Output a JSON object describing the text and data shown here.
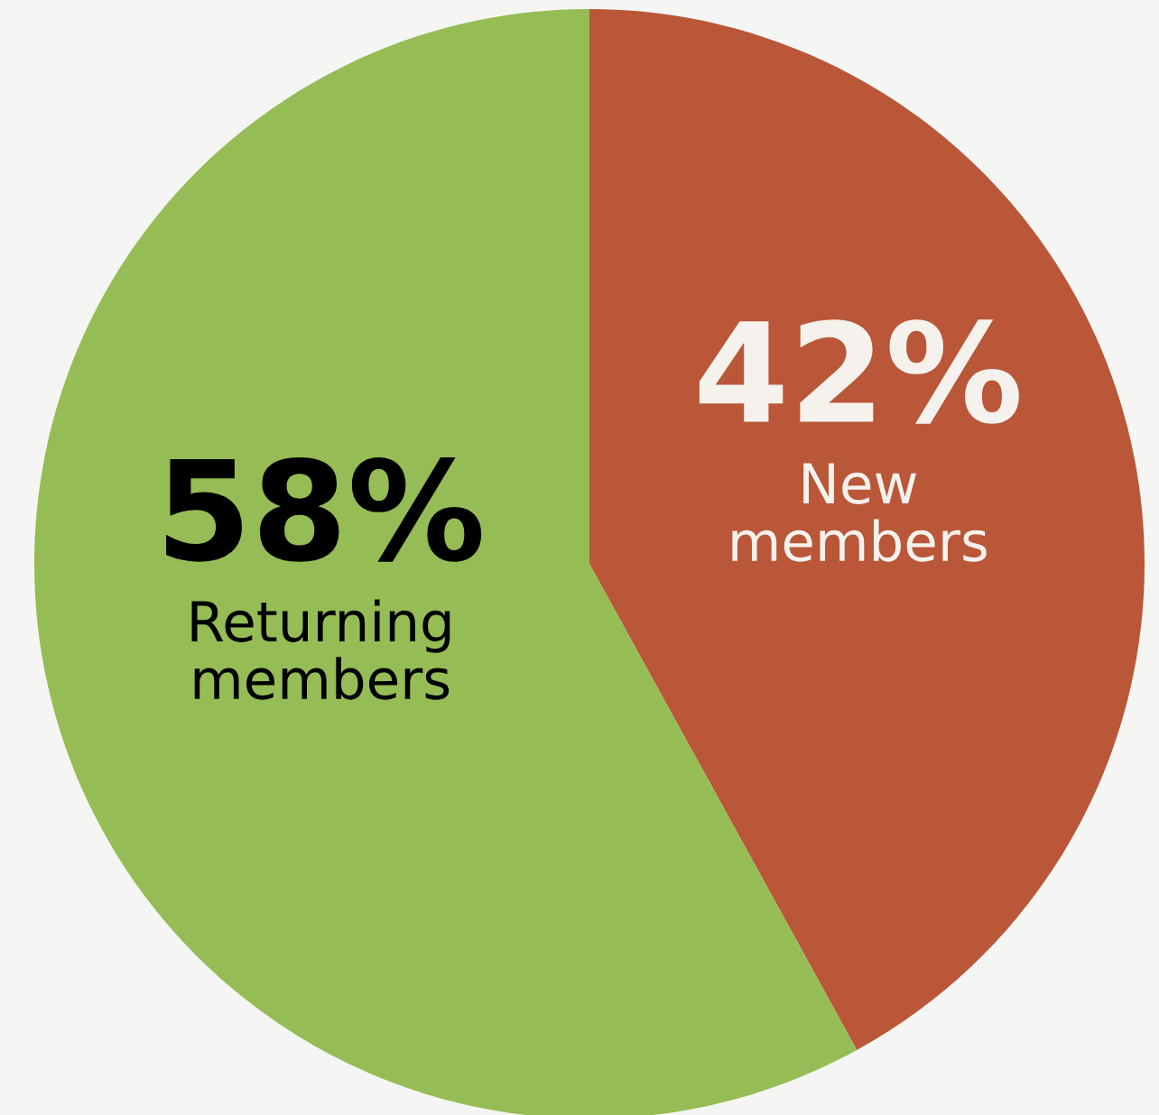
{
  "chart_data": {
    "type": "pie",
    "categories": [
      "New\nmembers",
      "Returning\nmembers"
    ],
    "values": [
      42,
      58
    ],
    "value_labels": [
      "42%",
      "58%"
    ],
    "colors": [
      "#b95738",
      "#96bd55"
    ]
  }
}
